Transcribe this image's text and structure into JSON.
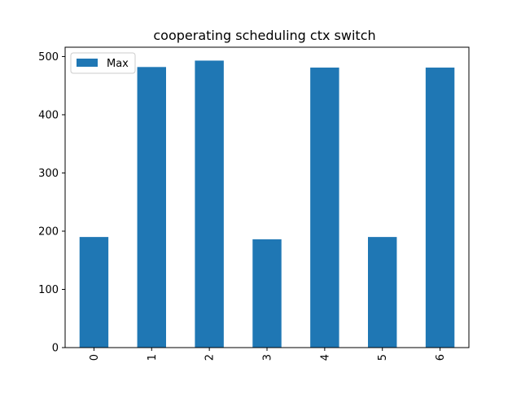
{
  "chart_data": {
    "type": "bar",
    "title": "cooperating scheduling ctx switch",
    "xlabel": "",
    "ylabel": "",
    "categories": [
      "0",
      "1",
      "2",
      "3",
      "4",
      "5",
      "6"
    ],
    "series": [
      {
        "name": "Max",
        "color": "#1f77b4",
        "values": [
          190,
          482,
          493,
          186,
          481,
          190,
          481
        ]
      }
    ],
    "ylim": [
      0,
      516
    ],
    "yticks": [
      0,
      100,
      200,
      300,
      400,
      500
    ],
    "xtick_rotation": "vertical",
    "legend_position": "upper-left",
    "grid": false
  }
}
